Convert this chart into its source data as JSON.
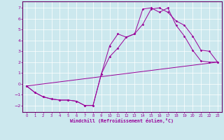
{
  "bg_color": "#cce8ee",
  "line_color": "#990099",
  "xlim": [
    -0.5,
    23.5
  ],
  "ylim": [
    -2.6,
    7.6
  ],
  "yticks": [
    -2,
    -1,
    0,
    1,
    2,
    3,
    4,
    5,
    6,
    7
  ],
  "xticks": [
    0,
    1,
    2,
    3,
    4,
    5,
    6,
    7,
    8,
    9,
    10,
    11,
    12,
    13,
    14,
    15,
    16,
    17,
    18,
    19,
    20,
    21,
    22,
    23
  ],
  "xlabel": "Windchill (Refroidissement éolien,°C)",
  "series1_x": [
    0,
    1,
    2,
    3,
    4,
    5,
    6,
    7,
    8,
    9,
    10,
    11,
    12,
    13,
    14,
    15,
    16,
    17,
    18,
    19,
    20,
    21,
    22,
    23
  ],
  "series1_y": [
    -0.2,
    -0.8,
    -1.2,
    -1.4,
    -1.5,
    -1.5,
    -1.6,
    -2.0,
    -2.0,
    0.9,
    3.5,
    4.6,
    4.3,
    4.6,
    6.9,
    7.0,
    6.6,
    7.0,
    5.4,
    4.4,
    3.1,
    2.1,
    2.0,
    2.0
  ],
  "series2_x": [
    0,
    1,
    2,
    3,
    4,
    5,
    6,
    7,
    8,
    9,
    10,
    11,
    12,
    13,
    14,
    15,
    16,
    17,
    18,
    19,
    20,
    21,
    22,
    23
  ],
  "series2_y": [
    -0.2,
    -0.8,
    -1.2,
    -1.4,
    -1.5,
    -1.5,
    -1.6,
    -2.0,
    -2.0,
    0.9,
    2.5,
    3.3,
    4.3,
    4.6,
    5.5,
    6.9,
    7.0,
    6.6,
    5.8,
    5.4,
    4.4,
    3.1,
    3.0,
    2.0
  ],
  "series3_x": [
    0,
    23
  ],
  "series3_y": [
    -0.2,
    2.0
  ],
  "grid_color": "#aacccc",
  "spine_color": "#660066"
}
